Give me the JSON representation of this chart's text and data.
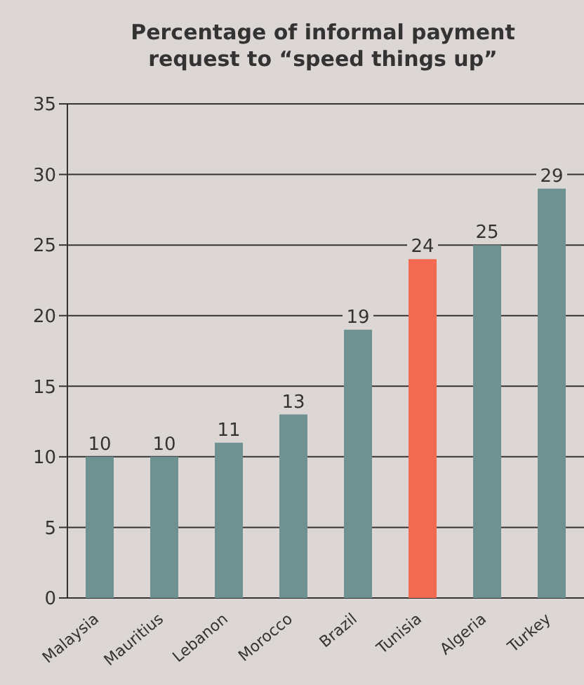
{
  "chart_data": {
    "type": "bar",
    "title": "Percentage of informal payment request to “speed things up”",
    "categories": [
      "Malaysia",
      "Mauritius",
      "Lebanon",
      "Morocco",
      "Brazil",
      "Tunisia",
      "Algeria",
      "Turkey"
    ],
    "values": [
      10,
      10,
      11,
      13,
      19,
      24,
      25,
      29
    ],
    "colors": [
      "#6e9191",
      "#6e9191",
      "#6e9191",
      "#6e9191",
      "#6e9191",
      "#f26a4f",
      "#6e9191",
      "#6e9191"
    ],
    "ylim": [
      0,
      35
    ],
    "yticks": [
      0,
      5,
      10,
      15,
      20,
      25,
      30,
      35
    ],
    "grid": "y",
    "data_labels": true
  }
}
